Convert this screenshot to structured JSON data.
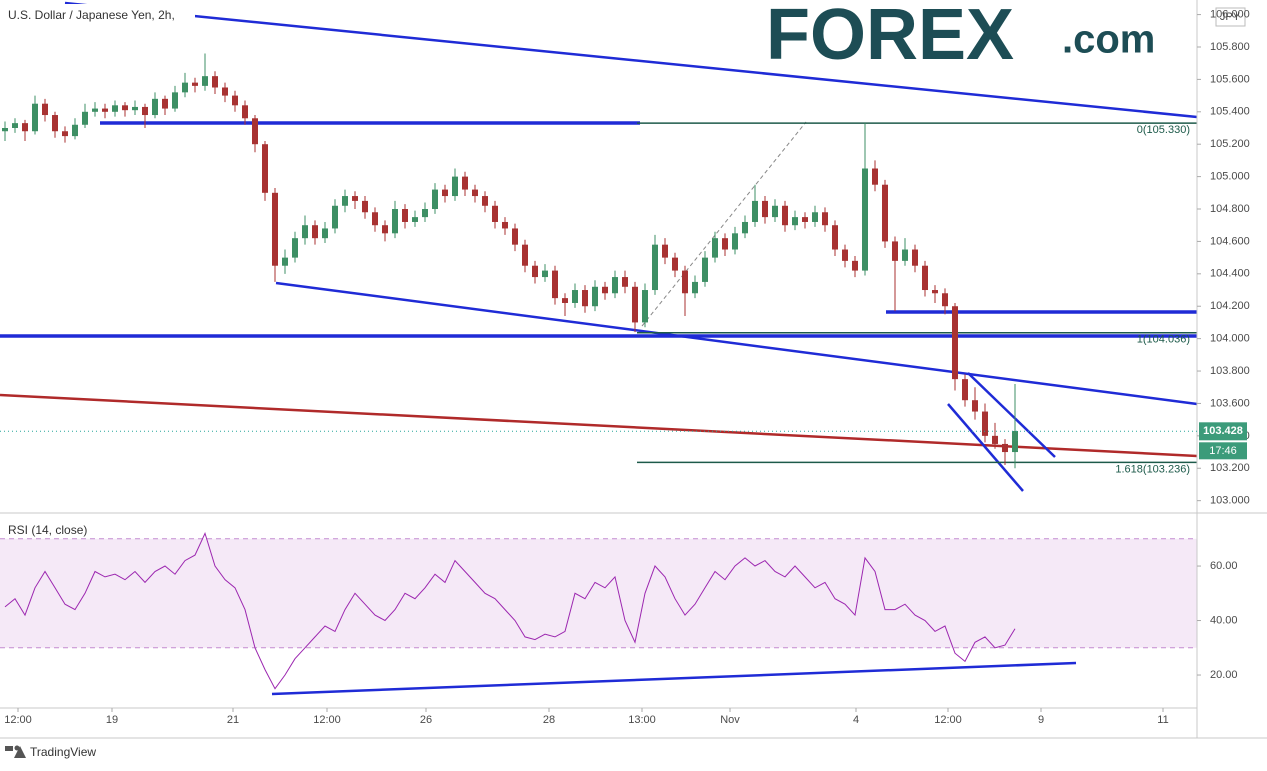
{
  "chart_data": [
    {
      "type": "candlestick",
      "title": "U.S. Dollar / Japanese Yen, 2h,",
      "currency": "JPY",
      "up_color": "#3d8f64",
      "down_color": "#a83232",
      "xlim": [
        -0.5,
        119.2
      ],
      "ylim": [
        102.93,
        106.09
      ],
      "yticks": [
        {
          "value": 103,
          "label": "103.000"
        },
        {
          "value": 103.2,
          "label": "103.200"
        },
        {
          "value": 103.4,
          "label": "103.400"
        },
        {
          "value": 103.6,
          "label": "103.600"
        },
        {
          "value": 103.8,
          "label": "103.800"
        },
        {
          "value": 104,
          "label": "104.000"
        },
        {
          "value": 104.2,
          "label": "104.200"
        },
        {
          "value": 104.4,
          "label": "104.400"
        },
        {
          "value": 104.6,
          "label": "104.600"
        },
        {
          "value": 104.8,
          "label": "104.800"
        },
        {
          "value": 105,
          "label": "105.000"
        },
        {
          "value": 105.2,
          "label": "105.200"
        },
        {
          "value": 105.4,
          "label": "105.400"
        },
        {
          "value": 105.6,
          "label": "105.600"
        },
        {
          "value": 105.8,
          "label": "105.800"
        },
        {
          "value": 106,
          "label": "106.000"
        }
      ],
      "fib_levels": [
        {
          "value": 105.33,
          "label": "0(105.330)"
        },
        {
          "value": 104.036,
          "label": "1(104.036)"
        },
        {
          "value": 103.236,
          "label": "1.618(103.236)"
        }
      ],
      "last_price": {
        "value": 103.428,
        "label": "103.428"
      },
      "countdown": "17:46",
      "candles": [
        [
          105.28,
          105.34,
          105.22,
          105.3
        ],
        [
          105.3,
          105.36,
          105.27,
          105.33
        ],
        [
          105.33,
          105.35,
          105.22,
          105.28
        ],
        [
          105.28,
          105.5,
          105.26,
          105.45
        ],
        [
          105.45,
          105.48,
          105.34,
          105.38
        ],
        [
          105.38,
          105.4,
          105.24,
          105.28
        ],
        [
          105.28,
          105.31,
          105.21,
          105.25
        ],
        [
          105.25,
          105.36,
          105.23,
          105.32
        ],
        [
          105.32,
          105.45,
          105.3,
          105.4
        ],
        [
          105.4,
          105.46,
          105.37,
          105.42
        ],
        [
          105.42,
          105.45,
          105.36,
          105.4
        ],
        [
          105.4,
          105.47,
          105.37,
          105.44
        ],
        [
          105.44,
          105.46,
          105.37,
          105.41
        ],
        [
          105.41,
          105.47,
          105.38,
          105.43
        ],
        [
          105.43,
          105.45,
          105.3,
          105.38
        ],
        [
          105.38,
          105.52,
          105.36,
          105.48
        ],
        [
          105.48,
          105.5,
          105.38,
          105.42
        ],
        [
          105.42,
          105.56,
          105.4,
          105.52
        ],
        [
          105.52,
          105.64,
          105.49,
          105.58
        ],
        [
          105.58,
          105.61,
          105.52,
          105.56
        ],
        [
          105.56,
          105.76,
          105.53,
          105.62
        ],
        [
          105.62,
          105.65,
          105.51,
          105.55
        ],
        [
          105.55,
          105.58,
          105.46,
          105.5
        ],
        [
          105.5,
          105.53,
          105.4,
          105.44
        ],
        [
          105.44,
          105.47,
          105.32,
          105.36
        ],
        [
          105.36,
          105.38,
          105.15,
          105.2
        ],
        [
          105.2,
          105.22,
          104.85,
          104.9
        ],
        [
          104.9,
          104.93,
          104.35,
          104.45
        ],
        [
          104.45,
          104.55,
          104.4,
          104.5
        ],
        [
          104.5,
          104.66,
          104.47,
          104.62
        ],
        [
          104.62,
          104.76,
          104.58,
          104.7
        ],
        [
          104.7,
          104.73,
          104.58,
          104.62
        ],
        [
          104.62,
          104.72,
          104.59,
          104.68
        ],
        [
          104.68,
          104.86,
          104.65,
          104.82
        ],
        [
          104.82,
          104.92,
          104.78,
          104.88
        ],
        [
          104.88,
          104.91,
          104.8,
          104.85
        ],
        [
          104.85,
          104.88,
          104.74,
          104.78
        ],
        [
          104.78,
          104.81,
          104.66,
          104.7
        ],
        [
          104.7,
          104.73,
          104.6,
          104.65
        ],
        [
          104.65,
          104.85,
          104.62,
          104.8
        ],
        [
          104.8,
          104.83,
          104.68,
          104.72
        ],
        [
          104.72,
          104.79,
          104.69,
          104.75
        ],
        [
          104.75,
          104.84,
          104.72,
          104.8
        ],
        [
          104.8,
          104.96,
          104.77,
          104.92
        ],
        [
          104.92,
          104.95,
          104.84,
          104.88
        ],
        [
          104.88,
          105.05,
          104.85,
          105.0
        ],
        [
          105.0,
          105.03,
          104.88,
          104.92
        ],
        [
          104.92,
          104.95,
          104.84,
          104.88
        ],
        [
          104.88,
          104.91,
          104.78,
          104.82
        ],
        [
          104.82,
          104.85,
          104.68,
          104.72
        ],
        [
          104.72,
          104.75,
          104.64,
          104.68
        ],
        [
          104.68,
          104.71,
          104.54,
          104.58
        ],
        [
          104.58,
          104.61,
          104.41,
          104.45
        ],
        [
          104.45,
          104.48,
          104.34,
          104.38
        ],
        [
          104.38,
          104.46,
          104.35,
          104.42
        ],
        [
          104.42,
          104.45,
          104.21,
          104.25
        ],
        [
          104.25,
          104.28,
          104.14,
          104.22
        ],
        [
          104.22,
          104.34,
          104.19,
          104.3
        ],
        [
          104.3,
          104.33,
          104.16,
          104.2
        ],
        [
          104.2,
          104.36,
          104.17,
          104.32
        ],
        [
          104.32,
          104.35,
          104.24,
          104.28
        ],
        [
          104.28,
          104.42,
          104.25,
          104.38
        ],
        [
          104.38,
          104.42,
          104.28,
          104.32
        ],
        [
          104.32,
          104.35,
          104.04,
          104.1
        ],
        [
          104.1,
          104.34,
          104.07,
          104.3
        ],
        [
          104.3,
          104.64,
          104.27,
          104.58
        ],
        [
          104.58,
          104.62,
          104.46,
          104.5
        ],
        [
          104.5,
          104.53,
          104.38,
          104.42
        ],
        [
          104.42,
          104.45,
          104.14,
          104.28
        ],
        [
          104.28,
          104.39,
          104.25,
          104.35
        ],
        [
          104.35,
          104.54,
          104.32,
          104.5
        ],
        [
          104.5,
          104.66,
          104.47,
          104.62
        ],
        [
          104.62,
          104.65,
          104.51,
          104.55
        ],
        [
          104.55,
          104.69,
          104.52,
          104.65
        ],
        [
          104.65,
          104.76,
          104.62,
          104.72
        ],
        [
          104.72,
          104.95,
          104.69,
          104.85
        ],
        [
          104.85,
          104.88,
          104.71,
          104.75
        ],
        [
          104.75,
          104.86,
          104.72,
          104.82
        ],
        [
          104.82,
          104.85,
          104.66,
          104.7
        ],
        [
          104.7,
          104.79,
          104.67,
          104.75
        ],
        [
          104.75,
          104.78,
          104.68,
          104.72
        ],
        [
          104.72,
          104.82,
          104.69,
          104.78
        ],
        [
          104.78,
          104.81,
          104.66,
          104.7
        ],
        [
          104.7,
          104.73,
          104.51,
          104.55
        ],
        [
          104.55,
          104.58,
          104.44,
          104.48
        ],
        [
          104.48,
          104.51,
          104.38,
          104.42
        ],
        [
          104.42,
          105.33,
          104.39,
          105.05
        ],
        [
          105.05,
          105.1,
          104.91,
          104.95
        ],
        [
          104.95,
          104.98,
          104.56,
          104.6
        ],
        [
          104.6,
          104.63,
          104.17,
          104.48
        ],
        [
          104.48,
          104.62,
          104.45,
          104.55
        ],
        [
          104.55,
          104.58,
          104.41,
          104.45
        ],
        [
          104.45,
          104.48,
          104.26,
          104.3
        ],
        [
          104.3,
          104.33,
          104.22,
          104.28
        ],
        [
          104.28,
          104.31,
          104.15,
          104.2
        ],
        [
          104.2,
          104.22,
          103.68,
          103.75
        ],
        [
          103.75,
          103.78,
          103.58,
          103.62
        ],
        [
          103.62,
          103.7,
          103.5,
          103.55
        ],
        [
          103.55,
          103.6,
          103.36,
          103.4
        ],
        [
          103.4,
          103.48,
          103.32,
          103.35
        ],
        [
          103.35,
          103.38,
          103.22,
          103.3
        ],
        [
          103.3,
          103.72,
          103.2,
          103.43
        ]
      ]
    },
    {
      "type": "line",
      "title": "RSI (14, close)",
      "color": "#9c27b0",
      "band": [
        30,
        70
      ],
      "xlim": [
        -0.5,
        119.2
      ],
      "xticks": [
        {
          "value": 1.3,
          "label": "12:00"
        },
        {
          "value": 10.7,
          "label": "19"
        },
        {
          "value": 22.8,
          "label": "21"
        },
        {
          "value": 32.2,
          "label": "12:00"
        },
        {
          "value": 42.1,
          "label": "26"
        },
        {
          "value": 54.4,
          "label": "28"
        },
        {
          "value": 63.7,
          "label": "13:00"
        },
        {
          "value": 72.5,
          "label": "Nov"
        },
        {
          "value": 85.1,
          "label": "4"
        },
        {
          "value": 94.3,
          "label": "12:00"
        },
        {
          "value": 103.6,
          "label": "9"
        },
        {
          "value": 115.8,
          "label": "11"
        }
      ],
      "ylim": [
        7.9,
        76.9
      ],
      "yticks": [
        {
          "value": 20,
          "label": "20.00"
        },
        {
          "value": 40,
          "label": "40.00"
        },
        {
          "value": 60,
          "label": "60.00"
        }
      ],
      "values": [
        45,
        48,
        42,
        52,
        58,
        52,
        46,
        44,
        50,
        58,
        56,
        57,
        55,
        58,
        54,
        58,
        60,
        57,
        62,
        64,
        72,
        60,
        55,
        52,
        44,
        30,
        22,
        15,
        20,
        26,
        30,
        34,
        38,
        36,
        44,
        50,
        46,
        42,
        40,
        44,
        50,
        48,
        52,
        57,
        54,
        62,
        58,
        54,
        50,
        48,
        44,
        40,
        34,
        33,
        35,
        34,
        36,
        50,
        48,
        54,
        52,
        56,
        40,
        32,
        50,
        60,
        56,
        48,
        42,
        46,
        52,
        58,
        55,
        60,
        63,
        60,
        62,
        58,
        56,
        60,
        56,
        52,
        54,
        48,
        46,
        42,
        63,
        58,
        44,
        44,
        46,
        42,
        40,
        36,
        38,
        28,
        25,
        32,
        34,
        30,
        31,
        37
      ]
    }
  ],
  "branding": {
    "logo_main": "FOREX",
    "logo_suffix": ".com",
    "footer": "TradingView"
  }
}
